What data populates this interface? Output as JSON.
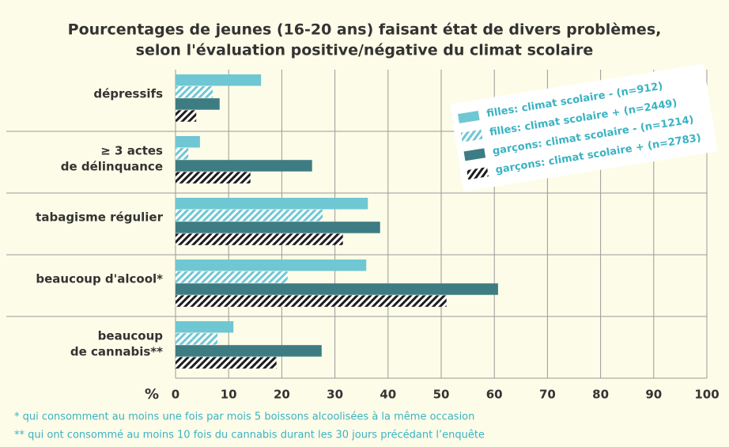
{
  "chart_data": {
    "type": "hbar",
    "title": [
      "Pourcentages de jeunes (16-20 ans) faisant état de divers problèmes,",
      "selon l'évaluation positive/négative du climat scolaire"
    ],
    "categories": [
      [
        "dépressifs"
      ],
      [
        "≥ 3 actes",
        "de délinquance"
      ],
      [
        "tabagisme régulier"
      ],
      [
        "beaucoup d'alcool*"
      ],
      [
        "beaucoup",
        "de cannabis**"
      ]
    ],
    "series": [
      {
        "name": "filles: climat scolaire - (n=912)",
        "color": "#6fc7d3",
        "pattern": "solid",
        "values": [
          16.1,
          4.6,
          36.2,
          35.9,
          10.9
        ]
      },
      {
        "name": "filles: climat scolaire + (n=2449)",
        "color": "#6fc7d3",
        "pattern": "hatch",
        "values": [
          7.0,
          2.4,
          27.7,
          21.1,
          7.9
        ]
      },
      {
        "name": "garçons: climat scolaire - (n=1214)",
        "color": "#3e7c83",
        "pattern": "solid",
        "values": [
          8.3,
          25.7,
          38.5,
          60.7,
          27.5
        ]
      },
      {
        "name": "garçons: climat scolaire + (n=2783)",
        "color": "#1d1d1d",
        "pattern": "hatch",
        "values": [
          3.9,
          14.1,
          31.5,
          51.0,
          19.0
        ]
      }
    ],
    "xlabel": "%",
    "xlim": [
      0,
      100
    ],
    "xticks": [
      0,
      10,
      20,
      30,
      40,
      50,
      60,
      70,
      80,
      90,
      100
    ],
    "grid": true,
    "notes": [
      "* qui consomment au moins une fois par mois 5 boissons alcoolisées à la même occasion",
      "** qui ont consommé au moins 10 fois du cannabis durant les 30 jours précédant l’enquête"
    ]
  }
}
